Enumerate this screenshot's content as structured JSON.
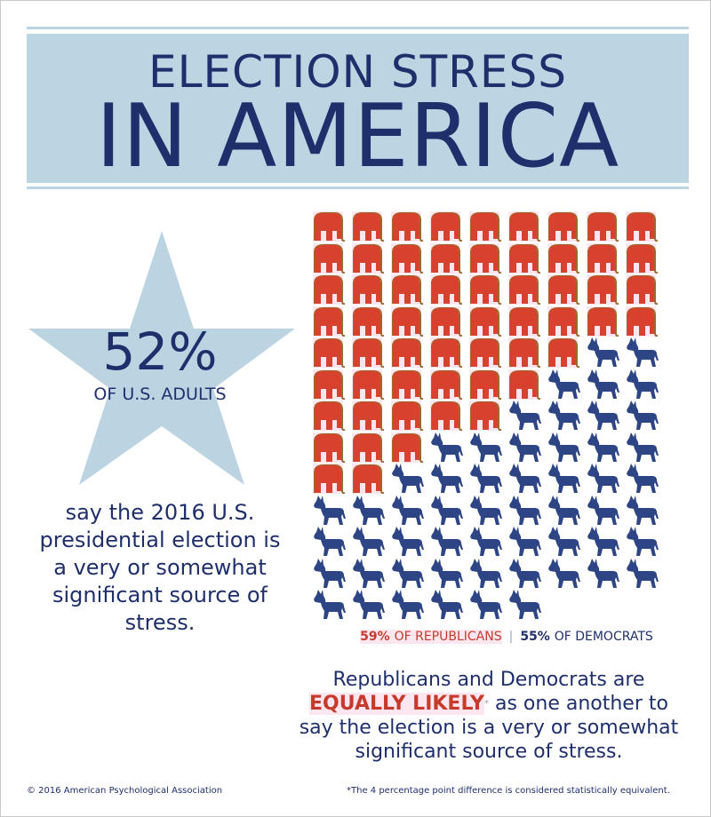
{
  "title": {
    "line1": "ELECTION STRESS",
    "line2": "IN AMERICA"
  },
  "star": {
    "percent": "52%",
    "subject": "OF U.S. ADULTS"
  },
  "left_statement": "say the 2016 U.S. presidential election is a very or somewhat significant source of stress.",
  "pictograph": {
    "columns": 9,
    "republicans": {
      "count": 59,
      "icon": "elephant-icon",
      "color": "#d9412f"
    },
    "democrats": {
      "count": 55,
      "icon": "donkey-icon",
      "color": "#2d4585"
    },
    "row_elephant_counts": [
      9,
      9,
      9,
      9,
      7,
      6,
      5,
      3,
      2,
      0,
      0,
      0,
      0
    ],
    "row_donkey_counts": [
      0,
      0,
      0,
      0,
      2,
      3,
      4,
      6,
      7,
      9,
      9,
      9,
      6
    ]
  },
  "legend": {
    "rep_pct": "59%",
    "rep_label": "OF REPUBLICANS",
    "sep": "|",
    "dem_pct": "55%",
    "dem_label": "OF DEMOCRATS"
  },
  "conclusion": {
    "line1": "Republicans and Democrats are",
    "emphasis": "EQUALLY LIKELY",
    "asterisk": "*",
    "rest": " as one another to",
    "line3": "say the election is a very or somewhat",
    "line4": "significant source of stress."
  },
  "footnote": "*The 4 percentage point difference is considered statistically equivalent.",
  "copyright": "© 2016 American Psychological Association",
  "colors": {
    "navy": "#1f2f6b",
    "light_blue": "#bcd5e3",
    "red": "#d9412f",
    "blue": "#2d4585"
  }
}
